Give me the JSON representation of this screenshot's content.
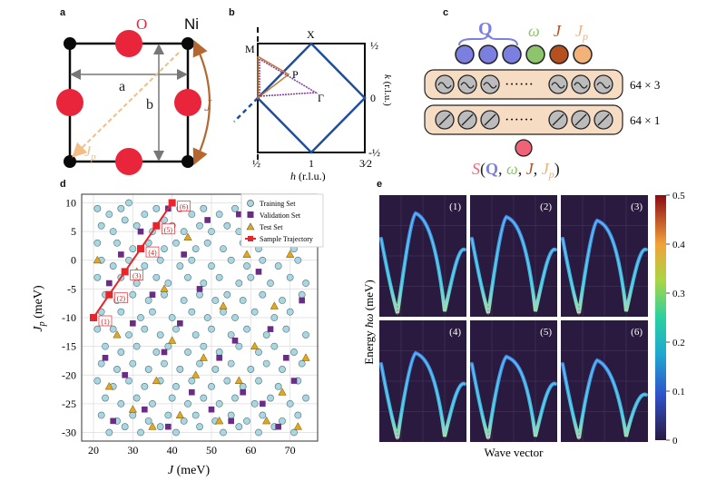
{
  "panels": {
    "a": {
      "label": "a",
      "oxygen": "O",
      "nickel": "Ni",
      "lattice_a": "a",
      "lattice_b": "b",
      "coupling_J": "J",
      "coupling_Jp_main": "J",
      "coupling_Jp_sub": "p",
      "colors": {
        "oxygen": "#e8253a",
        "nickel": "#0a0a0a",
        "bond": "#0a0a0a",
        "J_arrow": "#b5672f",
        "Jp_arrow": "#f2be86"
      }
    },
    "b": {
      "label": "b",
      "point_M": "M",
      "point_X": "X",
      "point_P": "P",
      "point_Gamma": "Γ",
      "xlabel_main": "h",
      "xlabel_units": "(r.l.u.)",
      "ylabel_main": "k",
      "ylabel_units": "(r.l.u.)",
      "xticks": [
        "½",
        "1",
        "3⁄2"
      ],
      "yticks": [
        "½",
        "0",
        "-½"
      ],
      "colors": {
        "zone": "#1f4e9c",
        "path_orange": "#c67b2e",
        "path_purple": "#7a3aa0"
      }
    },
    "c": {
      "label": "c",
      "input_Q": "Q",
      "input_omega": "ω",
      "input_J": "J",
      "input_Jp_main": "J",
      "input_Jp_sub": "p",
      "ellipsis": "······",
      "layer1_size": "64 × 3",
      "layer2_size": "64 × 1",
      "output_S": "S",
      "output_open": "(",
      "output_Q": "Q",
      "output_comma1": ", ",
      "output_omega": "ω",
      "output_comma2": ", ",
      "output_J": "J",
      "output_comma3": ", ",
      "output_Jp_main": "J",
      "output_Jp_sub": "p",
      "output_close": ")",
      "colors": {
        "Q": "#7b7fe0",
        "omega": "#8dc56c",
        "J": "#b5511f",
        "Jp": "#f2b27a",
        "output": "#f06277",
        "box": "#f7dcc4"
      }
    },
    "d": {
      "label": "d",
      "legend": [
        "Training Set",
        "Validation Set",
        "Test Set",
        "Sample Trajectory"
      ],
      "colors": {
        "training": "#a9d6e0",
        "validation": "#6a2c86",
        "test": "#e0a81f",
        "trajectory": "#e8252a"
      }
    },
    "e": {
      "label": "e",
      "xlabel": "Wave vector",
      "ylabel_main": "Energy ",
      "ylabel_sym": "ħω",
      "ylabel_units": " (meV)",
      "subplot_labels": [
        "(1)",
        "(2)",
        "(3)",
        "(4)",
        "(5)",
        "(6)"
      ],
      "colorbar_ticks": [
        "0.5",
        "0.4",
        "0.3",
        "0.2",
        "0.1",
        "0"
      ],
      "colors": {
        "background": "#2a1a3f"
      }
    }
  },
  "chart_data": {
    "type": "scatter",
    "title": "",
    "xlabel_main": "J",
    "xlabel_units": "(meV)",
    "ylabel_main": "J",
    "ylabel_sub": "p",
    "ylabel_units": "(meV)",
    "xlim": [
      17,
      77
    ],
    "ylim": [
      -31.5,
      11.5
    ],
    "xticks": [
      20,
      30,
      40,
      50,
      60,
      70
    ],
    "yticks": [
      10,
      5,
      0,
      -5,
      -10,
      -15,
      -20,
      -25,
      -30
    ],
    "grid": true,
    "legend_position": "top-right",
    "series": [
      {
        "name": "Training Set",
        "marker": "circle",
        "points": [
          [
            21,
            9
          ],
          [
            24,
            8
          ],
          [
            27,
            9
          ],
          [
            29,
            10
          ],
          [
            33,
            8
          ],
          [
            36,
            9
          ],
          [
            38,
            7
          ],
          [
            42,
            9
          ],
          [
            45,
            8
          ],
          [
            48,
            9
          ],
          [
            52,
            8
          ],
          [
            56,
            9
          ],
          [
            59,
            9
          ],
          [
            64,
            8
          ],
          [
            68,
            9
          ],
          [
            72,
            8
          ],
          [
            22,
            6
          ],
          [
            25,
            5
          ],
          [
            28,
            7
          ],
          [
            31,
            6
          ],
          [
            35,
            5
          ],
          [
            40,
            6
          ],
          [
            43,
            5
          ],
          [
            47,
            6
          ],
          [
            50,
            5
          ],
          [
            54,
            6
          ],
          [
            57,
            5
          ],
          [
            61,
            6
          ],
          [
            65,
            5
          ],
          [
            69,
            6
          ],
          [
            74,
            5
          ],
          [
            21,
            3
          ],
          [
            26,
            3
          ],
          [
            30,
            2
          ],
          [
            34,
            3
          ],
          [
            38,
            2
          ],
          [
            41,
            3
          ],
          [
            46,
            2
          ],
          [
            49,
            3
          ],
          [
            53,
            2
          ],
          [
            58,
            3
          ],
          [
            62,
            2
          ],
          [
            66,
            3
          ],
          [
            71,
            2
          ],
          [
            75,
            3
          ],
          [
            22,
            0
          ],
          [
            25,
            -1
          ],
          [
            29,
            0
          ],
          [
            33,
            -1
          ],
          [
            37,
            0
          ],
          [
            42,
            -1
          ],
          [
            45,
            0
          ],
          [
            50,
            -1
          ],
          [
            55,
            0
          ],
          [
            59,
            -1
          ],
          [
            63,
            0
          ],
          [
            67,
            -1
          ],
          [
            72,
            0
          ],
          [
            21,
            -3
          ],
          [
            27,
            -3
          ],
          [
            31,
            -4
          ],
          [
            36,
            -3
          ],
          [
            39,
            -4
          ],
          [
            44,
            -3
          ],
          [
            48,
            -4
          ],
          [
            52,
            -3
          ],
          [
            57,
            -4
          ],
          [
            60,
            -3
          ],
          [
            65,
            -4
          ],
          [
            70,
            -3
          ],
          [
            74,
            -4
          ],
          [
            23,
            -6
          ],
          [
            26,
            -7
          ],
          [
            30,
            -6
          ],
          [
            34,
            -7
          ],
          [
            38,
            -6
          ],
          [
            43,
            -7
          ],
          [
            47,
            -6
          ],
          [
            51,
            -7
          ],
          [
            54,
            -6
          ],
          [
            58,
            -7
          ],
          [
            63,
            -6
          ],
          [
            68,
            -7
          ],
          [
            73,
            -6
          ],
          [
            22,
            -9
          ],
          [
            27,
            -9
          ],
          [
            32,
            -10
          ],
          [
            35,
            -9
          ],
          [
            40,
            -10
          ],
          [
            45,
            -9
          ],
          [
            49,
            -10
          ],
          [
            53,
            -9
          ],
          [
            56,
            -10
          ],
          [
            61,
            -9
          ],
          [
            66,
            -10
          ],
          [
            70,
            -9
          ],
          [
            21,
            -12
          ],
          [
            25,
            -12
          ],
          [
            29,
            -13
          ],
          [
            33,
            -12
          ],
          [
            37,
            -13
          ],
          [
            41,
            -12
          ],
          [
            46,
            -13
          ],
          [
            50,
            -12
          ],
          [
            55,
            -13
          ],
          [
            59,
            -12
          ],
          [
            64,
            -13
          ],
          [
            69,
            -12
          ],
          [
            74,
            -13
          ],
          [
            23,
            -15
          ],
          [
            27,
            -16
          ],
          [
            31,
            -15
          ],
          [
            36,
            -16
          ],
          [
            39,
            -15
          ],
          [
            44,
            -16
          ],
          [
            48,
            -15
          ],
          [
            52,
            -16
          ],
          [
            57,
            -15
          ],
          [
            62,
            -16
          ],
          [
            66,
            -15
          ],
          [
            71,
            -16
          ],
          [
            22,
            -18
          ],
          [
            26,
            -19
          ],
          [
            30,
            -18
          ],
          [
            34,
            -19
          ],
          [
            38,
            -18
          ],
          [
            42,
            -19
          ],
          [
            47,
            -18
          ],
          [
            51,
            -19
          ],
          [
            55,
            -18
          ],
          [
            60,
            -19
          ],
          [
            64,
            -18
          ],
          [
            68,
            -19
          ],
          [
            73,
            -18
          ],
          [
            21,
            -21
          ],
          [
            25,
            -22
          ],
          [
            29,
            -21
          ],
          [
            33,
            -22
          ],
          [
            37,
            -21
          ],
          [
            41,
            -22
          ],
          [
            45,
            -21
          ],
          [
            50,
            -22
          ],
          [
            54,
            -21
          ],
          [
            58,
            -22
          ],
          [
            62,
            -21
          ],
          [
            67,
            -22
          ],
          [
            72,
            -21
          ],
          [
            23,
            -24
          ],
          [
            27,
            -25
          ],
          [
            31,
            -24
          ],
          [
            35,
            -25
          ],
          [
            40,
            -24
          ],
          [
            44,
            -25
          ],
          [
            48,
            -24
          ],
          [
            52,
            -25
          ],
          [
            56,
            -24
          ],
          [
            61,
            -25
          ],
          [
            65,
            -24
          ],
          [
            70,
            -25
          ],
          [
            74,
            -24
          ],
          [
            22,
            -27
          ],
          [
            26,
            -28
          ],
          [
            30,
            -27
          ],
          [
            34,
            -28
          ],
          [
            39,
            -27
          ],
          [
            43,
            -28
          ],
          [
            46,
            -27
          ],
          [
            51,
            -28
          ],
          [
            55,
            -27
          ],
          [
            59,
            -28
          ],
          [
            63,
            -27
          ],
          [
            68,
            -28
          ],
          [
            72,
            -27
          ],
          [
            24,
            -30
          ],
          [
            28,
            -29
          ],
          [
            32,
            -30
          ],
          [
            37,
            -29
          ],
          [
            41,
            -30
          ],
          [
            47,
            -29
          ],
          [
            53,
            -30
          ],
          [
            57,
            -29
          ],
          [
            62,
            -30
          ],
          [
            66,
            -29
          ],
          [
            71,
            -30
          ]
        ]
      },
      {
        "name": "Validation Set",
        "marker": "square",
        "points": [
          [
            39,
            9
          ],
          [
            32,
            5
          ],
          [
            49,
            7
          ],
          [
            57,
            8
          ],
          [
            27,
            1
          ],
          [
            43,
            1
          ],
          [
            60,
            4
          ],
          [
            71,
            5
          ],
          [
            24,
            -4
          ],
          [
            35,
            -6
          ],
          [
            47,
            -5
          ],
          [
            62,
            -2
          ],
          [
            73,
            -7
          ],
          [
            30,
            -11
          ],
          [
            42,
            -11
          ],
          [
            56,
            -14
          ],
          [
            65,
            -12
          ],
          [
            23,
            -17
          ],
          [
            38,
            -16
          ],
          [
            52,
            -17
          ],
          [
            69,
            -17
          ],
          [
            28,
            -20
          ],
          [
            45,
            -23
          ],
          [
            58,
            -23
          ],
          [
            71,
            -21
          ],
          [
            33,
            -26
          ],
          [
            50,
            -26
          ],
          [
            63,
            -25
          ],
          [
            39,
            -29
          ],
          [
            55,
            -28
          ],
          [
            67,
            -29
          ],
          [
            25,
            -28
          ]
        ]
      },
      {
        "name": "Test Set",
        "marker": "triangle",
        "points": [
          [
            21,
            0
          ],
          [
            44,
            4
          ],
          [
            59,
            1
          ],
          [
            70,
            1
          ],
          [
            31,
            -2
          ],
          [
            38,
            -5
          ],
          [
            53,
            -8
          ],
          [
            66,
            -8
          ],
          [
            26,
            -13
          ],
          [
            40,
            -14
          ],
          [
            48,
            -17
          ],
          [
            61,
            -15
          ],
          [
            74,
            -17
          ],
          [
            24,
            -22
          ],
          [
            36,
            -21
          ],
          [
            46,
            -20
          ],
          [
            57,
            -21
          ],
          [
            68,
            -23
          ],
          [
            30,
            -26
          ],
          [
            42,
            -27
          ],
          [
            52,
            -28
          ],
          [
            64,
            -28
          ],
          [
            35,
            -29
          ],
          [
            72,
            -29
          ]
        ]
      },
      {
        "name": "Sample Trajectory",
        "marker": "square-line",
        "labels": [
          "(1)",
          "(2)",
          "(3)",
          "(4)",
          "(5)",
          "(6)"
        ],
        "points": [
          [
            20,
            -10
          ],
          [
            24,
            -6
          ],
          [
            28,
            -2
          ],
          [
            32,
            2
          ],
          [
            36,
            6
          ],
          [
            40,
            10
          ]
        ]
      }
    ]
  }
}
